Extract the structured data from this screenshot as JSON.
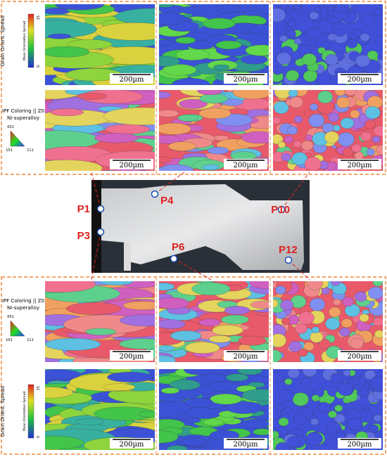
{
  "top": {
    "legend_gos": {
      "title": "Grain Orient. Spread",
      "subtitle": "Mean Orientation Spread",
      "min": 0,
      "max": 15
    },
    "legend_ipf": {
      "title": "IPF Coloring || Z0",
      "material": "Ni-superalloy",
      "corners": [
        "001",
        "101",
        "111"
      ]
    },
    "scale_bars": [
      "200µm",
      "200µm",
      "200µm",
      "200µm",
      "200µm",
      "200µm"
    ]
  },
  "photo": {
    "points": [
      "P1",
      "P3",
      "P4",
      "P6",
      "P10",
      "P12"
    ]
  },
  "bottom": {
    "legend_ipf": {
      "title": "IPF Coloring || Z0",
      "material": "Ni-superalloy",
      "corners": [
        "001",
        "101",
        "111"
      ]
    },
    "legend_gos": {
      "title": "Grain Orient. Spread",
      "subtitle": "Mean Orientation Spread",
      "min": 0,
      "max": 15
    },
    "scale_bars": [
      "200µm",
      "200µm",
      "200µm",
      "200µm",
      "200µm",
      "200µm"
    ]
  }
}
